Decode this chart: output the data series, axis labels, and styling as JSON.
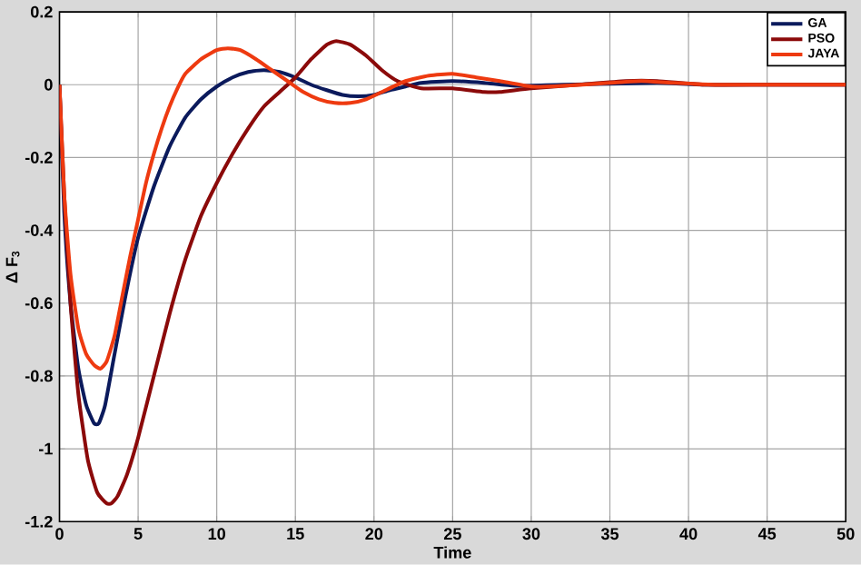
{
  "chart_data": {
    "type": "line",
    "xlabel": "Time",
    "ylabel": "Δ F$_{3}$",
    "xlim": [
      0,
      50
    ],
    "ylim": [
      -1.2,
      0.2
    ],
    "xticks": [
      0,
      5,
      10,
      15,
      20,
      25,
      30,
      35,
      40,
      45,
      50
    ],
    "yticks": [
      -1.2,
      -1,
      -0.8,
      -0.6,
      -0.4,
      -0.2,
      0,
      0.2
    ],
    "grid": true,
    "legend": "top right",
    "line_style": "solid",
    "series": [
      {
        "name": "GA",
        "color": "#0b1a5c",
        "x": [
          0,
          0.3,
          0.7,
          1.2,
          1.7,
          2.2,
          2.5,
          2.9,
          3.5,
          4.2,
          5,
          6,
          7,
          8,
          9,
          10,
          11,
          12,
          13,
          14,
          15,
          16,
          17,
          18,
          19,
          20,
          21,
          22,
          23,
          25,
          27,
          29,
          32,
          35,
          38,
          41,
          45,
          50
        ],
        "values": [
          0,
          -0.35,
          -0.6,
          -0.78,
          -0.88,
          -0.93,
          -0.93,
          -0.88,
          -0.74,
          -0.58,
          -0.42,
          -0.28,
          -0.17,
          -0.09,
          -0.04,
          -0.005,
          0.02,
          0.035,
          0.04,
          0.035,
          0.02,
          0.0,
          -0.015,
          -0.028,
          -0.032,
          -0.028,
          -0.015,
          -0.005,
          0.005,
          0.01,
          0.005,
          -0.003,
          0.0,
          null,
          0.005,
          0.0,
          0.0,
          0.0
        ]
      },
      {
        "name": "PSO",
        "color": "#8b0a0a",
        "x": [
          0,
          0.3,
          0.7,
          1.2,
          1.8,
          2.4,
          3,
          3.3,
          3.7,
          4.3,
          5,
          6,
          7,
          8,
          9,
          10,
          11,
          12,
          13,
          14,
          15,
          16,
          17,
          17.6,
          18.5,
          19.5,
          20.5,
          21.5,
          23,
          25,
          27,
          28,
          30,
          33,
          36,
          38,
          41,
          45,
          50
        ],
        "values": [
          0,
          -0.3,
          -0.6,
          -0.85,
          -1.03,
          -1.12,
          -1.15,
          -1.15,
          -1.13,
          -1.07,
          -0.97,
          -0.8,
          -0.63,
          -0.48,
          -0.36,
          -0.27,
          -0.19,
          -0.12,
          -0.06,
          -0.02,
          0.02,
          0.07,
          0.11,
          0.12,
          0.11,
          0.08,
          0.04,
          0.01,
          -0.01,
          -0.01,
          -0.02,
          -0.02,
          -0.01,
          0.0,
          0.01,
          0.01,
          0.0,
          0.0,
          0.0
        ]
      },
      {
        "name": "JAYA",
        "color": "#ee3a10",
        "x": [
          0,
          0.3,
          0.7,
          1.2,
          1.7,
          2.2,
          2.6,
          3,
          3.5,
          4,
          4.5,
          5,
          5.5,
          6,
          6.5,
          7,
          7.5,
          8,
          9,
          10,
          10.7,
          11.5,
          12.5,
          13.5,
          14.5,
          15.5,
          16.5,
          17.5,
          18.5,
          19.5,
          20.5,
          22,
          23.5,
          25,
          26.5,
          28,
          30,
          32,
          35,
          37,
          39,
          42,
          45,
          50
        ],
        "values": [
          0,
          -0.3,
          -0.52,
          -0.67,
          -0.74,
          -0.77,
          -0.78,
          -0.76,
          -0.69,
          -0.58,
          -0.47,
          -0.37,
          -0.27,
          -0.19,
          -0.12,
          -0.06,
          -0.01,
          0.03,
          0.07,
          0.095,
          0.1,
          0.095,
          0.07,
          0.04,
          0.01,
          -0.02,
          -0.04,
          -0.05,
          -0.05,
          -0.04,
          -0.02,
          0.01,
          0.025,
          0.03,
          0.02,
          0.01,
          -0.005,
          -0.003,
          0.005,
          0.01,
          0.005,
          0.0,
          0.0,
          0.0
        ]
      }
    ]
  }
}
